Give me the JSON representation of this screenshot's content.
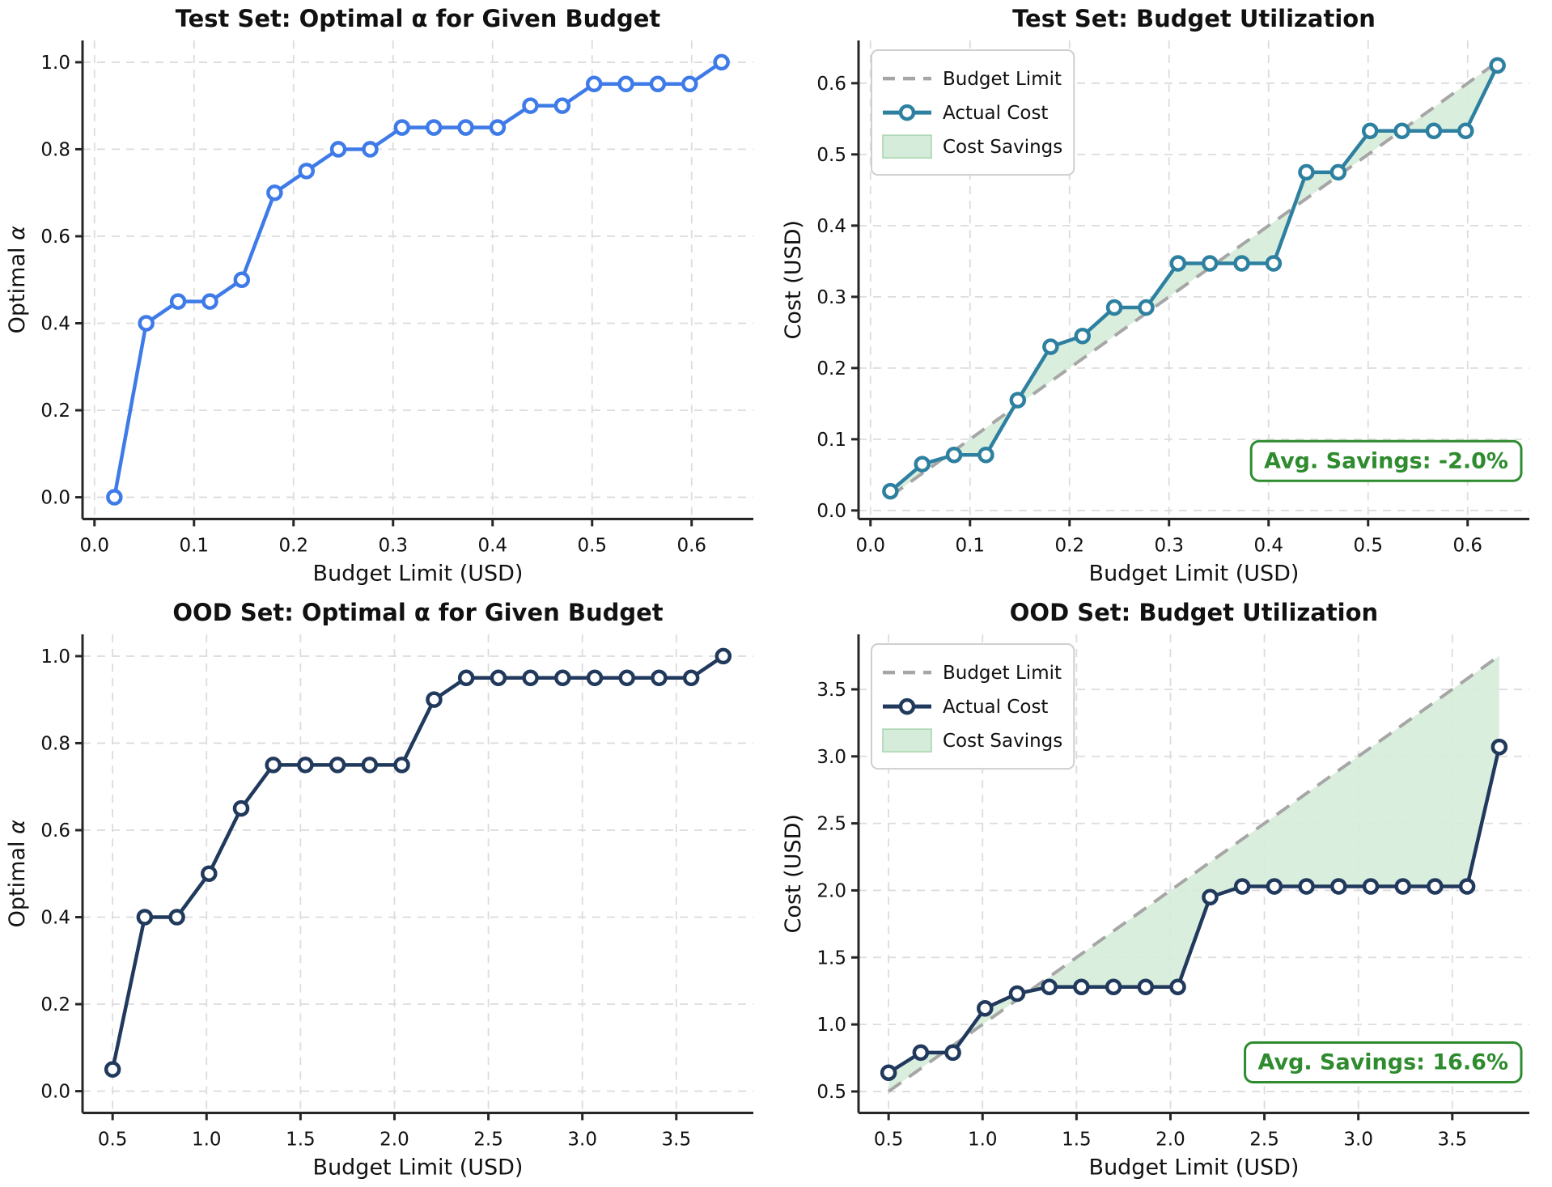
{
  "page": {
    "background": "#ffffff"
  },
  "chart_data": [
    {
      "id": "test-alpha",
      "type": "line",
      "title": "Test Set: Optimal α for Given Budget",
      "xlabel": "Budget Limit (USD)",
      "ylabel": "Optimal α",
      "line_color": "#3e7be8",
      "marker": "circle-open",
      "grid": true,
      "xlim": [
        -0.012,
        0.662
      ],
      "ylim": [
        -0.05,
        1.05
      ],
      "xticks": [
        0.0,
        0.1,
        0.2,
        0.3,
        0.4,
        0.5,
        0.6
      ],
      "yticks": [
        0.0,
        0.2,
        0.4,
        0.6,
        0.8,
        1.0
      ],
      "x": [
        0.02,
        0.052,
        0.084,
        0.116,
        0.148,
        0.181,
        0.213,
        0.245,
        0.277,
        0.309,
        0.341,
        0.373,
        0.405,
        0.438,
        0.47,
        0.502,
        0.534,
        0.566,
        0.598,
        0.63
      ],
      "y": [
        0.0,
        0.4,
        0.45,
        0.45,
        0.5,
        0.7,
        0.75,
        0.8,
        0.8,
        0.85,
        0.85,
        0.85,
        0.85,
        0.9,
        0.9,
        0.95,
        0.95,
        0.95,
        0.95,
        1.0
      ]
    },
    {
      "id": "test-util",
      "type": "line+area",
      "title": "Test Set: Budget Utilization",
      "xlabel": "Budget Limit (USD)",
      "ylabel": "Cost (USD)",
      "line_color": "#2e80a0",
      "budget_color": "#a6a6a6",
      "fill_color": "#d6ecda",
      "fill_edge": "#a5d4ae",
      "marker": "circle-open",
      "grid": true,
      "legend": [
        "Budget Limit",
        "Actual Cost",
        "Cost Savings"
      ],
      "legend_position": "upper left",
      "annotation": {
        "text": "Avg. Savings: -2.0%",
        "color": "#2e8b2e",
        "y": 0.07
      },
      "xlim": [
        -0.012,
        0.662
      ],
      "ylim": [
        -0.012,
        0.66
      ],
      "xticks": [
        0.0,
        0.1,
        0.2,
        0.3,
        0.4,
        0.5,
        0.6
      ],
      "yticks": [
        0.0,
        0.1,
        0.2,
        0.3,
        0.4,
        0.5,
        0.6
      ],
      "x": [
        0.02,
        0.052,
        0.084,
        0.116,
        0.148,
        0.181,
        0.213,
        0.245,
        0.277,
        0.309,
        0.341,
        0.373,
        0.405,
        0.438,
        0.47,
        0.502,
        0.534,
        0.566,
        0.598,
        0.63
      ],
      "y": [
        0.027,
        0.065,
        0.078,
        0.078,
        0.155,
        0.23,
        0.245,
        0.285,
        0.285,
        0.347,
        0.347,
        0.347,
        0.347,
        0.475,
        0.475,
        0.533,
        0.533,
        0.533,
        0.533,
        0.625
      ],
      "budget": [
        0.02,
        0.052,
        0.084,
        0.116,
        0.148,
        0.181,
        0.213,
        0.245,
        0.277,
        0.309,
        0.341,
        0.373,
        0.405,
        0.438,
        0.47,
        0.502,
        0.534,
        0.566,
        0.598,
        0.63
      ]
    },
    {
      "id": "ood-alpha",
      "type": "line",
      "title": "OOD Set: Optimal α for Given Budget",
      "xlabel": "Budget Limit (USD)",
      "ylabel": "Optimal α",
      "line_color": "#20395c",
      "marker": "circle-open",
      "grid": true,
      "xlim": [
        0.34,
        3.91
      ],
      "ylim": [
        -0.05,
        1.05
      ],
      "xticks": [
        0.5,
        1.0,
        1.5,
        2.0,
        2.5,
        3.0,
        3.5
      ],
      "yticks": [
        0.0,
        0.2,
        0.4,
        0.6,
        0.8,
        1.0
      ],
      "x": [
        0.5,
        0.671,
        0.842,
        1.013,
        1.184,
        1.355,
        1.526,
        1.697,
        1.868,
        2.039,
        2.211,
        2.382,
        2.553,
        2.724,
        2.895,
        3.066,
        3.237,
        3.408,
        3.579,
        3.75
      ],
      "y": [
        0.05,
        0.4,
        0.4,
        0.5,
        0.65,
        0.75,
        0.75,
        0.75,
        0.75,
        0.75,
        0.9,
        0.95,
        0.95,
        0.95,
        0.95,
        0.95,
        0.95,
        0.95,
        0.95,
        1.0
      ]
    },
    {
      "id": "ood-util",
      "type": "line+area",
      "title": "OOD Set: Budget Utilization",
      "xlabel": "Budget Limit (USD)",
      "ylabel": "Cost (USD)",
      "line_color": "#20395c",
      "budget_color": "#a6a6a6",
      "fill_color": "#d6ecda",
      "fill_edge": "#a5d4ae",
      "marker": "circle-open",
      "grid": true,
      "legend": [
        "Budget Limit",
        "Actual Cost",
        "Cost Savings"
      ],
      "legend_position": "upper left",
      "annotation": {
        "text": "Avg. Savings: 16.6%",
        "color": "#2e8b2e",
        "y": 0.72
      },
      "xlim": [
        0.34,
        3.91
      ],
      "ylim": [
        0.34,
        3.91
      ],
      "xticks": [
        0.5,
        1.0,
        1.5,
        2.0,
        2.5,
        3.0,
        3.5
      ],
      "yticks": [
        0.5,
        1.0,
        1.5,
        2.0,
        2.5,
        3.0,
        3.5
      ],
      "x": [
        0.5,
        0.671,
        0.842,
        1.013,
        1.184,
        1.355,
        1.526,
        1.697,
        1.868,
        2.039,
        2.211,
        2.382,
        2.553,
        2.724,
        2.895,
        3.066,
        3.237,
        3.408,
        3.579,
        3.75
      ],
      "y": [
        0.64,
        0.79,
        0.79,
        1.12,
        1.23,
        1.28,
        1.28,
        1.28,
        1.28,
        1.28,
        1.95,
        2.03,
        2.03,
        2.03,
        2.03,
        2.03,
        2.03,
        2.03,
        2.03,
        3.07
      ],
      "budget": [
        0.5,
        0.671,
        0.842,
        1.013,
        1.184,
        1.355,
        1.526,
        1.697,
        1.868,
        2.039,
        2.211,
        2.382,
        2.553,
        2.724,
        2.895,
        3.066,
        3.237,
        3.408,
        3.579,
        3.75
      ]
    }
  ]
}
